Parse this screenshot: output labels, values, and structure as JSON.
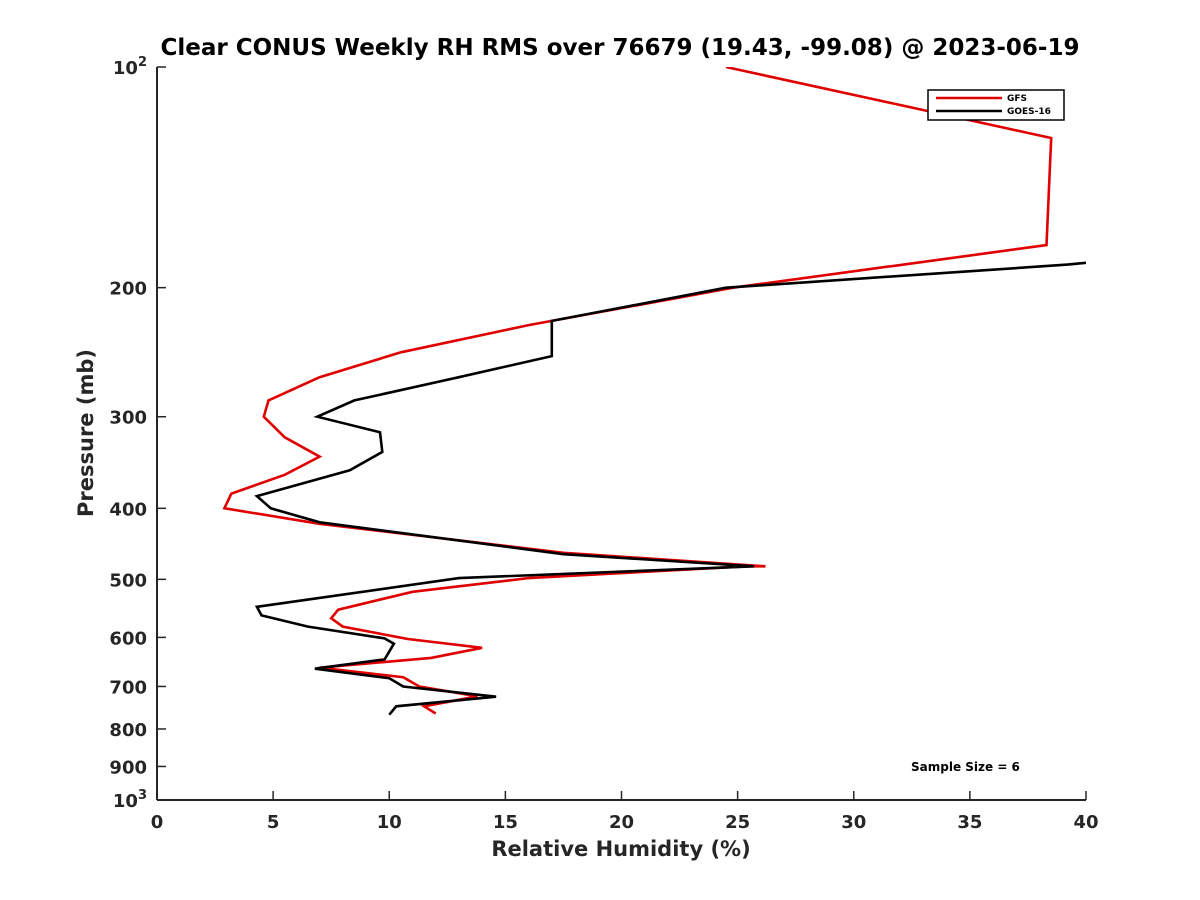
{
  "chart_data": {
    "type": "line",
    "title": "Clear CONUS Weekly RH RMS over 76679 (19.43, -99.08) @ 2023-06-19",
    "xlabel": "Relative Humidity (%)",
    "ylabel": "Pressure (mb)",
    "xlim": [
      0,
      40
    ],
    "ylim": [
      100,
      1000
    ],
    "y_scale": "log",
    "y_reversed": true,
    "x_ticks": [
      "0",
      "5",
      "10",
      "15",
      "20",
      "25",
      "30",
      "35",
      "40"
    ],
    "y_ticks": [
      {
        "value": 100,
        "base": "10",
        "sup": "2"
      },
      {
        "value": 200,
        "base": "200",
        "sup": ""
      },
      {
        "value": 300,
        "base": "300",
        "sup": ""
      },
      {
        "value": 400,
        "base": "400",
        "sup": ""
      },
      {
        "value": 500,
        "base": "500",
        "sup": ""
      },
      {
        "value": 600,
        "base": "600",
        "sup": ""
      },
      {
        "value": 700,
        "base": "700",
        "sup": ""
      },
      {
        "value": 800,
        "base": "800",
        "sup": ""
      },
      {
        "value": 900,
        "base": "900",
        "sup": ""
      },
      {
        "value": 1000,
        "base": "10",
        "sup": "3"
      }
    ],
    "grid": false,
    "legend_position": "top-right",
    "series": [
      {
        "name": "GFS",
        "color": "#e00000",
        "points": [
          [
            24.5,
            100
          ],
          [
            38.5,
            125
          ],
          [
            38.3,
            175
          ],
          [
            24.8,
            200
          ],
          [
            16,
            225
          ],
          [
            10.5,
            245
          ],
          [
            7,
            265
          ],
          [
            4.8,
            285
          ],
          [
            4.6,
            300
          ],
          [
            5.5,
            320
          ],
          [
            7,
            340
          ],
          [
            5.5,
            360
          ],
          [
            3.2,
            382
          ],
          [
            2.9,
            400
          ],
          [
            7,
            420
          ],
          [
            17.5,
            460
          ],
          [
            26.2,
            480
          ],
          [
            25.4,
            480
          ],
          [
            16,
            498
          ],
          [
            11,
            520
          ],
          [
            7.8,
            550
          ],
          [
            7.5,
            565
          ],
          [
            8,
            580
          ],
          [
            10.8,
            603
          ],
          [
            14,
            620
          ],
          [
            11.8,
            640
          ],
          [
            7,
            660
          ],
          [
            10.6,
            680
          ],
          [
            11.3,
            700
          ],
          [
            13.8,
            722
          ],
          [
            11.5,
            745
          ],
          [
            12,
            762
          ]
        ]
      },
      {
        "name": "GOES-16",
        "color": "#000000",
        "points": [
          [
            40,
            185
          ],
          [
            39.2,
            186
          ],
          [
            24.5,
            200
          ],
          [
            17,
            222
          ],
          [
            17,
            248
          ],
          [
            13,
            265
          ],
          [
            8.5,
            285
          ],
          [
            6.9,
            300
          ],
          [
            9.6,
            315
          ],
          [
            9.7,
            335
          ],
          [
            8.3,
            355
          ],
          [
            4.3,
            385
          ],
          [
            4.9,
            400
          ],
          [
            7,
            418
          ],
          [
            17.5,
            462
          ],
          [
            25.7,
            480
          ],
          [
            13,
            498
          ],
          [
            4.3,
            545
          ],
          [
            4.5,
            560
          ],
          [
            6.5,
            580
          ],
          [
            9.8,
            602
          ],
          [
            10.2,
            612
          ],
          [
            9.8,
            643
          ],
          [
            6.8,
            662
          ],
          [
            10,
            682
          ],
          [
            10.6,
            700
          ],
          [
            14.6,
            723
          ],
          [
            10.3,
            745
          ],
          [
            10,
            765
          ]
        ]
      }
    ],
    "annotations": [
      "Sample Size = 6"
    ]
  }
}
